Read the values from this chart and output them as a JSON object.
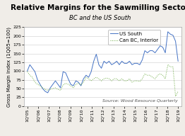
{
  "title": "Relative Margins for the Sawmilling Sector",
  "subtitle": "BC and the US South",
  "ylabel": "Gross Margin Index (1Q05=100)",
  "source": "Source: Wood Resource Quarterly",
  "ylim": [
    0,
    225
  ],
  "yticks": [
    0,
    25,
    50,
    75,
    100,
    125,
    150,
    175,
    200,
    225
  ],
  "x_labels": [
    "1Q'05",
    "1Q'06",
    "1Q'07",
    "1Q'08",
    "1Q'09",
    "1Q'10",
    "1Q'11",
    "1Q'12",
    "1Q'13",
    "1Q'14",
    "1Q'15",
    "1Q'16",
    "1Q'17",
    "1Q'18",
    "1Q'19"
  ],
  "us_south": [
    100,
    118,
    108,
    98,
    75,
    62,
    50,
    42,
    38,
    52,
    62,
    72,
    62,
    52,
    98,
    95,
    78,
    62,
    58,
    72,
    68,
    58,
    78,
    88,
    82,
    98,
    128,
    148,
    118,
    108,
    128,
    122,
    128,
    118,
    122,
    128,
    118,
    128,
    122,
    122,
    128,
    118,
    122,
    122,
    118,
    132,
    158,
    152,
    158,
    158,
    152,
    162,
    172,
    168,
    152,
    212,
    205,
    202,
    185,
    128
  ],
  "can_bc": [
    98,
    88,
    82,
    68,
    62,
    58,
    52,
    48,
    45,
    48,
    50,
    52,
    48,
    45,
    60,
    65,
    62,
    58,
    52,
    62,
    65,
    60,
    68,
    82,
    78,
    72,
    78,
    82,
    78,
    72,
    78,
    80,
    78,
    72,
    78,
    78,
    72,
    78,
    72,
    72,
    78,
    68,
    72,
    72,
    70,
    78,
    92,
    88,
    88,
    82,
    78,
    88,
    92,
    88,
    78,
    118,
    112,
    112,
    28,
    42
  ],
  "us_south_color": "#4472c4",
  "can_bc_color": "#70ad47",
  "bg_color": "#f0ede8",
  "plot_bg_color": "#ffffff",
  "title_fontsize": 7.5,
  "subtitle_fontsize": 6,
  "ylabel_fontsize": 5,
  "tick_fontsize": 4.5,
  "legend_fontsize": 5,
  "source_fontsize": 4.5
}
